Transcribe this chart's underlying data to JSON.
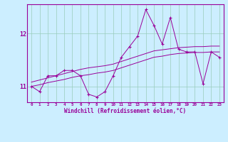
{
  "x": [
    0,
    1,
    2,
    3,
    4,
    5,
    6,
    7,
    8,
    9,
    10,
    11,
    12,
    13,
    14,
    15,
    16,
    17,
    18,
    19,
    20,
    21,
    22,
    23
  ],
  "y_main": [
    11.0,
    10.9,
    11.2,
    11.2,
    11.3,
    11.3,
    11.2,
    10.85,
    10.8,
    10.9,
    11.2,
    11.55,
    11.75,
    11.95,
    12.45,
    12.15,
    11.8,
    12.3,
    11.7,
    11.65,
    11.65,
    11.05,
    11.65,
    11.55
  ],
  "y_trend1": [
    11.0,
    11.03,
    11.07,
    11.1,
    11.13,
    11.17,
    11.2,
    11.22,
    11.25,
    11.27,
    11.3,
    11.35,
    11.4,
    11.45,
    11.5,
    11.55,
    11.57,
    11.6,
    11.62,
    11.63,
    11.64,
    11.64,
    11.65,
    11.65
  ],
  "y_trend2": [
    11.08,
    11.12,
    11.16,
    11.2,
    11.24,
    11.28,
    11.32,
    11.35,
    11.37,
    11.39,
    11.42,
    11.47,
    11.52,
    11.57,
    11.62,
    11.67,
    11.69,
    11.71,
    11.73,
    11.74,
    11.75,
    11.75,
    11.76,
    11.76
  ],
  "line_color": "#990099",
  "bg_color": "#cceeff",
  "grid_color": "#99ccbb",
  "xlabel": "Windchill (Refroidissement éolien,°C)",
  "ylim": [
    10.7,
    12.55
  ],
  "xlim": [
    -0.5,
    23.5
  ],
  "yticks": [
    11,
    12
  ],
  "xticks": [
    0,
    1,
    2,
    3,
    4,
    5,
    6,
    7,
    8,
    9,
    10,
    11,
    12,
    13,
    14,
    15,
    16,
    17,
    18,
    19,
    20,
    21,
    22,
    23
  ]
}
